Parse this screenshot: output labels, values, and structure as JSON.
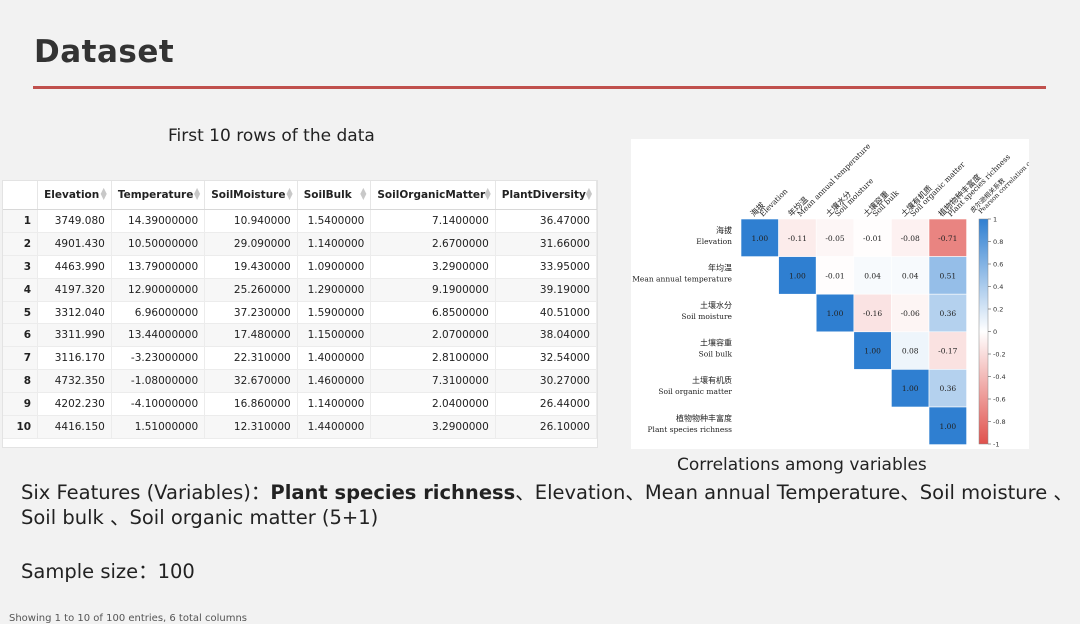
{
  "slide": {
    "title": "Dataset",
    "table_caption": "First 10 rows of the data",
    "corr_caption": "Correlations among variables",
    "features_label": "Six Features (Variables)：",
    "features_bold": "Plant species richness",
    "features_rest_line1": "、Elevation、Mean annual Temperature、Soil moisture 、",
    "features_line2": "Soil bulk 、Soil organic matter (5+1)",
    "sample_size": "Sample size：100"
  },
  "table": {
    "columns": [
      "Elevation",
      "Temperature",
      "SoilMoisture",
      "SoilBulk",
      "SoilOrganicMatter",
      "PlantDiversity"
    ],
    "rows": [
      [
        "1",
        "3749.080",
        "14.39000000",
        "10.940000",
        "1.5400000",
        "7.1400000",
        "36.47000"
      ],
      [
        "2",
        "4901.430",
        "10.50000000",
        "29.090000",
        "1.1400000",
        "2.6700000",
        "31.66000"
      ],
      [
        "3",
        "4463.990",
        "13.79000000",
        "19.430000",
        "1.0900000",
        "3.2900000",
        "33.95000"
      ],
      [
        "4",
        "4197.320",
        "12.90000000",
        "25.260000",
        "1.2900000",
        "9.1900000",
        "39.19000"
      ],
      [
        "5",
        "3312.040",
        "6.96000000",
        "37.230000",
        "1.5900000",
        "6.8500000",
        "40.51000"
      ],
      [
        "6",
        "3311.990",
        "13.44000000",
        "17.480000",
        "1.1500000",
        "2.0700000",
        "38.04000"
      ],
      [
        "7",
        "3116.170",
        "-3.23000000",
        "22.310000",
        "1.4000000",
        "2.8100000",
        "32.54000"
      ],
      [
        "8",
        "4732.350",
        "-1.08000000",
        "32.670000",
        "1.4600000",
        "7.3100000",
        "30.27000"
      ],
      [
        "9",
        "4202.230",
        "-4.10000000",
        "16.860000",
        "1.1400000",
        "2.0400000",
        "26.44000"
      ],
      [
        "10",
        "4416.150",
        "1.51000000",
        "12.310000",
        "1.4400000",
        "3.2900000",
        "26.10000"
      ]
    ],
    "footer": "Showing 1 to 10 of 100 entries, 6 total columns"
  },
  "corr": {
    "vars": [
      {
        "zh": "海拔",
        "en": "Elevation"
      },
      {
        "zh": "年均温",
        "en": "Mean annual temperature"
      },
      {
        "zh": "土壤水分",
        "en": "Soil moisture"
      },
      {
        "zh": "土壤容重",
        "en": "Soil bulk"
      },
      {
        "zh": "土壤有机质",
        "en": "Soil organic matter"
      },
      {
        "zh": "植物物种丰富度",
        "en": "Plant species richness"
      }
    ],
    "matrix": [
      [
        1.0,
        -0.11,
        -0.05,
        -0.01,
        -0.08,
        -0.71
      ],
      [
        null,
        1.0,
        -0.01,
        0.04,
        0.04,
        0.51
      ],
      [
        null,
        null,
        1.0,
        -0.16,
        -0.06,
        0.36
      ],
      [
        null,
        null,
        null,
        1.0,
        0.08,
        -0.17
      ],
      [
        null,
        null,
        null,
        null,
        1.0,
        0.36
      ],
      [
        null,
        null,
        null,
        null,
        null,
        1.0
      ]
    ],
    "legend_title_zh": "皮尔逊相关系数",
    "legend_title_en": "Pearson correlation coefficient",
    "legend_ticks": [
      "1",
      "0.8",
      "0.6",
      "0.4",
      "0.2",
      "0",
      "-0.2",
      "-0.4",
      "-0.6",
      "-0.8",
      "-1"
    ],
    "colors": {
      "positive": "#2f7fd1",
      "negative": "#e0524d",
      "neutral": "#ffffff"
    }
  }
}
